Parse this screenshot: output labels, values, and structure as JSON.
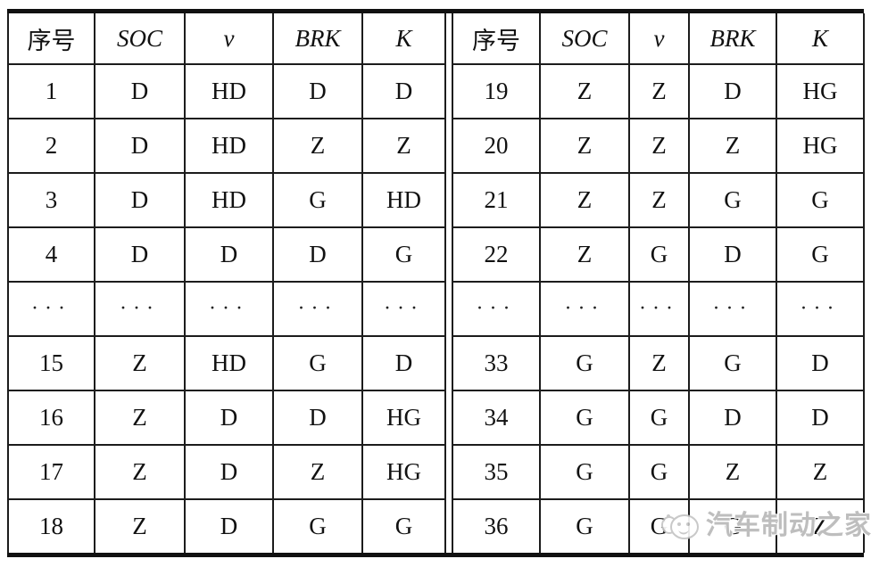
{
  "table": {
    "headers": [
      "序号",
      "SOC",
      "v",
      "BRK",
      "K"
    ],
    "left_rows": [
      [
        "1",
        "D",
        "HD",
        "D",
        "D"
      ],
      [
        "2",
        "D",
        "HD",
        "Z",
        "Z"
      ],
      [
        "3",
        "D",
        "HD",
        "G",
        "HD"
      ],
      [
        "4",
        "D",
        "D",
        "D",
        "G"
      ],
      [
        "···",
        "···",
        "···",
        "···",
        "···"
      ],
      [
        "15",
        "Z",
        "HD",
        "G",
        "D"
      ],
      [
        "16",
        "Z",
        "D",
        "D",
        "HG"
      ],
      [
        "17",
        "Z",
        "D",
        "Z",
        "HG"
      ],
      [
        "18",
        "Z",
        "D",
        "G",
        "G"
      ]
    ],
    "right_rows": [
      [
        "19",
        "Z",
        "Z",
        "D",
        "HG"
      ],
      [
        "20",
        "Z",
        "Z",
        "Z",
        "HG"
      ],
      [
        "21",
        "Z",
        "Z",
        "G",
        "G"
      ],
      [
        "22",
        "Z",
        "G",
        "D",
        "G"
      ],
      [
        "···",
        "···",
        "···",
        "···",
        "···"
      ],
      [
        "33",
        "G",
        "Z",
        "G",
        "D"
      ],
      [
        "34",
        "G",
        "G",
        "D",
        "D"
      ],
      [
        "35",
        "G",
        "G",
        "Z",
        "Z"
      ],
      [
        "36",
        "G",
        "G",
        "G",
        "Z"
      ]
    ]
  },
  "watermark": {
    "text": "汽车制动之家",
    "logo": "wechat-mascot-icon",
    "text_color": "#bbbbbb"
  },
  "colors": {
    "background": "#ffffff",
    "border": "#1c1c1c",
    "thick_rule": "#111111",
    "text": "#111111"
  }
}
